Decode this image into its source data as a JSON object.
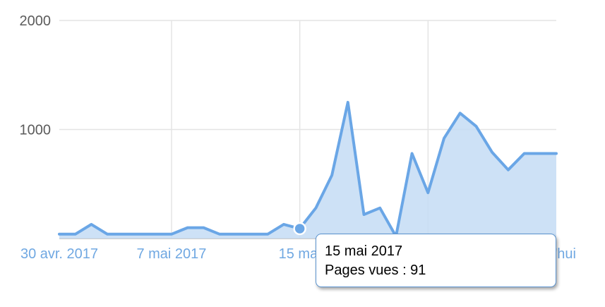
{
  "chart_data": {
    "type": "area",
    "title": "",
    "xlabel": "",
    "ylabel": "",
    "ylim": [
      0,
      2000
    ],
    "yticks": [
      {
        "value": 2000,
        "label": "2000"
      },
      {
        "value": 1000,
        "label": "1000"
      }
    ],
    "x": [
      "2017-04-30",
      "2017-05-01",
      "2017-05-02",
      "2017-05-03",
      "2017-05-04",
      "2017-05-05",
      "2017-05-06",
      "2017-05-07",
      "2017-05-08",
      "2017-05-09",
      "2017-05-10",
      "2017-05-11",
      "2017-05-12",
      "2017-05-13",
      "2017-05-14",
      "2017-05-15",
      "2017-05-16",
      "2017-05-17",
      "2017-05-18",
      "2017-05-19",
      "2017-05-20",
      "2017-05-21",
      "2017-05-22",
      "2017-05-23",
      "2017-05-24",
      "2017-05-25",
      "2017-05-26",
      "2017-05-27",
      "2017-05-28",
      "2017-05-29",
      "2017-05-30",
      "2017-05-31"
    ],
    "xticks": [
      {
        "date": "2017-04-30",
        "label": "30 avr. 2017"
      },
      {
        "date": "2017-05-07",
        "label": "7 mai 2017"
      },
      {
        "date": "2017-05-15",
        "label": "15 mai"
      },
      {
        "date": "2017-05-31",
        "label": "d'hui"
      }
    ],
    "vgrid_dates": [
      "2017-05-07",
      "2017-05-15",
      "2017-05-23"
    ],
    "series": [
      {
        "values": [
          40,
          40,
          130,
          40,
          40,
          40,
          40,
          40,
          100,
          100,
          40,
          40,
          40,
          40,
          130,
          91,
          280,
          580,
          1250,
          220,
          280,
          20,
          780,
          420,
          920,
          1150,
          1030,
          790,
          630,
          780,
          780,
          780
        ]
      }
    ],
    "grid": true,
    "legend": "none",
    "colors": {
      "line": "#6aa6e6",
      "fill": "#c4dcf4",
      "grid": "#e4e4e4",
      "axis_label": "#5b5b5b",
      "x_label": "#70a8e2",
      "baseline": "#bdbdbd"
    }
  },
  "tooltip": {
    "date": "15 mai 2017",
    "text": "Pages vues : 91",
    "highlight_date": "2017-05-15"
  }
}
